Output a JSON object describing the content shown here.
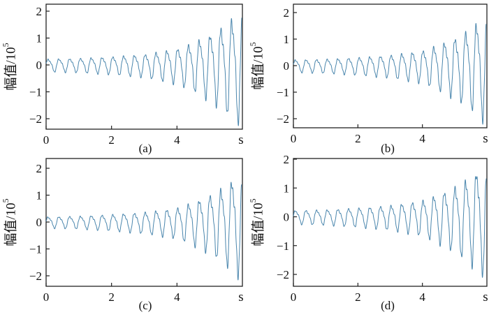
{
  "figure": {
    "panels": [
      {
        "label": "(a)",
        "ylabel": "幅值/10",
        "ylabel_sup": "5",
        "xunit": "s"
      },
      {
        "label": "(b)",
        "ylabel": "幅值/10",
        "ylabel_sup": "5",
        "xunit": "s"
      },
      {
        "label": "(c)",
        "ylabel": "幅值/10",
        "ylabel_sup": "5",
        "xunit": "s"
      },
      {
        "label": "(d)",
        "ylabel": "幅值/10",
        "ylabel_sup": "5",
        "xunit": "s"
      }
    ]
  },
  "colors": {
    "signal": "#4a86ad",
    "axis": "#222222"
  },
  "chart_data": [
    {
      "type": "line",
      "title": "(a)",
      "xlabel": "s",
      "ylabel": "幅值/10^5",
      "xlim": [
        0,
        6
      ],
      "ylim": [
        -2.5,
        2.5
      ],
      "xticks": [
        0,
        2,
        4
      ],
      "yticks": [
        -2,
        -1,
        0,
        1,
        2
      ],
      "grid": false,
      "envelope": {
        "x": [
          0,
          1,
          2,
          3,
          4,
          4.5,
          5,
          5.5,
          5.8
        ],
        "amplitude": [
          0.25,
          0.28,
          0.35,
          0.45,
          0.7,
          0.95,
          1.3,
          1.75,
          2.1
        ]
      },
      "oscillation_period_s": 0.33,
      "tick_label_precision": 1
    },
    {
      "type": "line",
      "title": "(b)",
      "xlabel": "s",
      "ylabel": "幅值/10^5",
      "xlim": [
        0,
        6
      ],
      "ylim": [
        -2.5,
        2.5
      ],
      "xticks": [
        0,
        2,
        4
      ],
      "yticks": [
        -2,
        -1,
        0,
        1,
        2
      ],
      "grid": false,
      "envelope": {
        "x": [
          0,
          1,
          2,
          3,
          4,
          4.5,
          5,
          5.5,
          5.8
        ],
        "amplitude": [
          0.25,
          0.28,
          0.35,
          0.45,
          0.65,
          0.9,
          1.2,
          1.6,
          2.0
        ]
      },
      "oscillation_period_s": 0.33,
      "tick_label_precision": 1
    },
    {
      "type": "line",
      "title": "(c)",
      "xlabel": "s",
      "ylabel": "幅值/10^5",
      "xlim": [
        0,
        6
      ],
      "ylim": [
        -2.5,
        2.5
      ],
      "xticks": [
        0,
        2,
        4
      ],
      "yticks": [
        -2,
        -1,
        0,
        1,
        2
      ],
      "grid": false,
      "envelope": {
        "x": [
          0,
          1,
          2,
          3,
          4,
          4.5,
          5,
          5.5,
          5.8
        ],
        "amplitude": [
          0.22,
          0.25,
          0.32,
          0.42,
          0.6,
          0.85,
          1.15,
          1.55,
          1.95
        ]
      },
      "oscillation_period_s": 0.33,
      "tick_label_precision": 1
    },
    {
      "type": "line",
      "title": "(d)",
      "xlabel": "s",
      "ylabel": "幅值/10^5",
      "xlim": [
        0,
        6
      ],
      "ylim": [
        -2.5,
        2
      ],
      "xticks": [
        0,
        2,
        4
      ],
      "yticks": [
        -2,
        -1,
        0,
        1,
        2
      ],
      "grid": false,
      "envelope": {
        "x": [
          0,
          1,
          2,
          3,
          4,
          4.5,
          5,
          5.5,
          5.8
        ],
        "amplitude": [
          0.25,
          0.28,
          0.35,
          0.45,
          0.65,
          0.9,
          1.2,
          1.6,
          1.95
        ]
      },
      "oscillation_period_s": 0.33,
      "tick_label_precision": 1
    }
  ]
}
